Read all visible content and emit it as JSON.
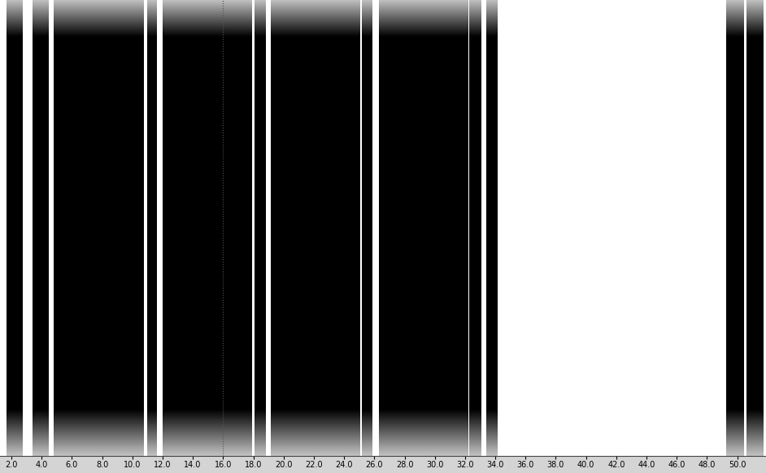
{
  "chart_data": {
    "type": "segments",
    "segments": [
      [
        1.68,
        2.75
      ],
      [
        3.4,
        4.47
      ],
      [
        4.8,
        10.76
      ],
      [
        10.98,
        11.62
      ],
      [
        12.0,
        17.9
      ],
      [
        18.1,
        18.8
      ],
      [
        19.15,
        25.06
      ],
      [
        25.2,
        25.87
      ],
      [
        26.3,
        32.2
      ],
      [
        32.3,
        33.1
      ],
      [
        33.4,
        34.1
      ],
      [
        49.26,
        50.44
      ],
      [
        50.6,
        51.68
      ]
    ],
    "cursor_x": 16.0,
    "color": "#000000",
    "xlim": [
      1.25,
      51.9
    ],
    "ylim": [
      0,
      1
    ],
    "xticks": [
      2.0,
      4.0,
      6.0,
      8.0,
      10.0,
      12.0,
      14.0,
      16.0,
      18.0,
      20.0,
      22.0,
      24.0,
      26.0,
      28.0,
      30.0,
      32.0,
      34.0,
      36.0,
      38.0,
      40.0,
      42.0,
      44.0,
      46.0,
      48.0,
      50.0
    ],
    "tick_labels": "x",
    "grid": false
  }
}
